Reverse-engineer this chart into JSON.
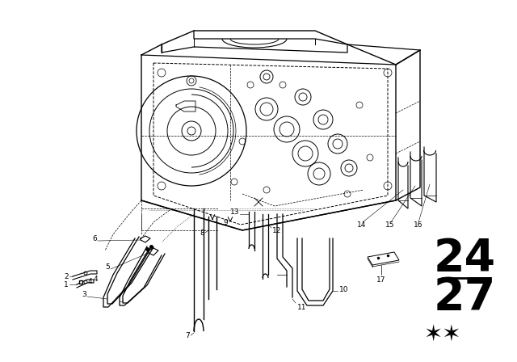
{
  "background_color": "#ffffff",
  "line_color": "#000000",
  "fig_width": 6.4,
  "fig_height": 4.48,
  "dpi": 100,
  "number_24": "24",
  "number_27": "27",
  "stars": "★★"
}
